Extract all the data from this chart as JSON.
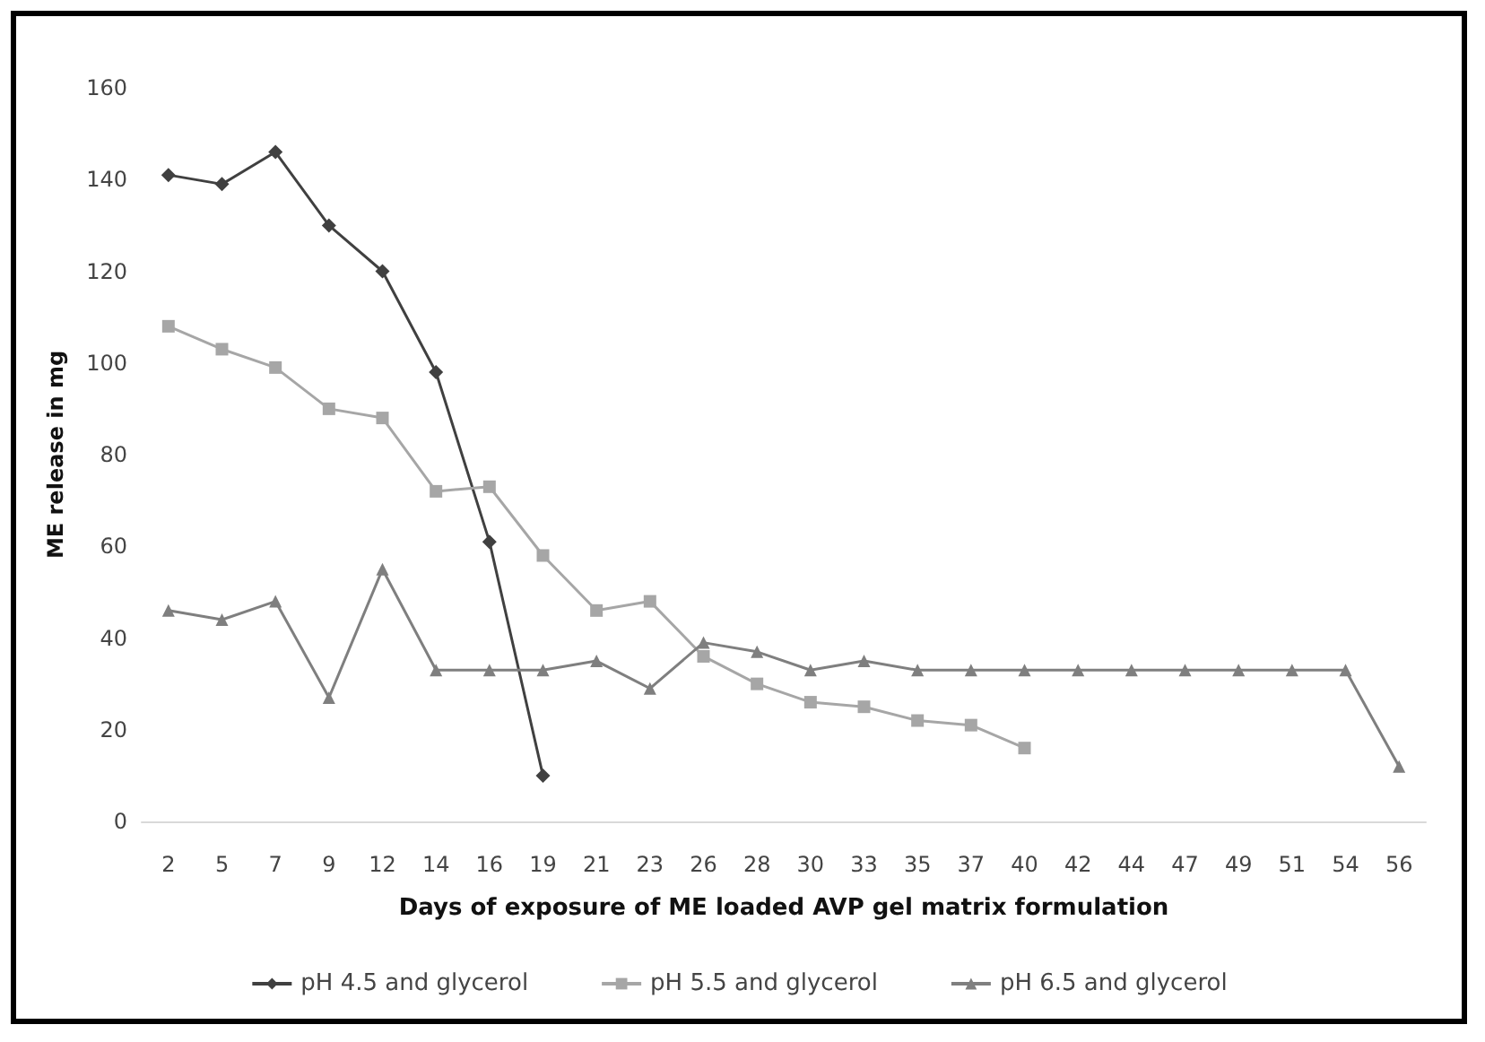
{
  "chart_data": {
    "type": "line",
    "xlabel": "Days of exposure of ME loaded AVP gel matrix formulation",
    "ylabel": "ME release in mg",
    "categories": [
      "2",
      "5",
      "7",
      "9",
      "12",
      "14",
      "16",
      "19",
      "21",
      "23",
      "26",
      "28",
      "30",
      "33",
      "35",
      "37",
      "40",
      "42",
      "44",
      "47",
      "49",
      "51",
      "54",
      "56"
    ],
    "series": [
      {
        "name": "pH 4.5 and glycerol",
        "color": "#404040",
        "marker": "diamond",
        "values": [
          141,
          139,
          146,
          130,
          120,
          98,
          61,
          10,
          null,
          null,
          null,
          null,
          null,
          null,
          null,
          null,
          null,
          null,
          null,
          null,
          null,
          null,
          null,
          null
        ]
      },
      {
        "name": "pH 5.5 and glycerol",
        "color": "#a6a6a6",
        "marker": "square",
        "values": [
          108,
          103,
          99,
          90,
          88,
          72,
          73,
          58,
          46,
          48,
          36,
          30,
          26,
          25,
          22,
          21,
          16,
          null,
          null,
          null,
          null,
          null,
          null,
          null
        ]
      },
      {
        "name": "pH 6.5 and glycerol",
        "color": "#7f7f7f",
        "marker": "triangle",
        "values": [
          46,
          44,
          48,
          27,
          55,
          33,
          33,
          33,
          35,
          29,
          39,
          37,
          33,
          35,
          33,
          33,
          33,
          33,
          33,
          33,
          33,
          33,
          33,
          12
        ]
      }
    ],
    "ylim": [
      0,
      160
    ],
    "yticks": [
      0,
      20,
      40,
      60,
      80,
      100,
      120,
      140,
      160
    ],
    "grid": false,
    "legend": "bottom",
    "line_style": "solid"
  }
}
